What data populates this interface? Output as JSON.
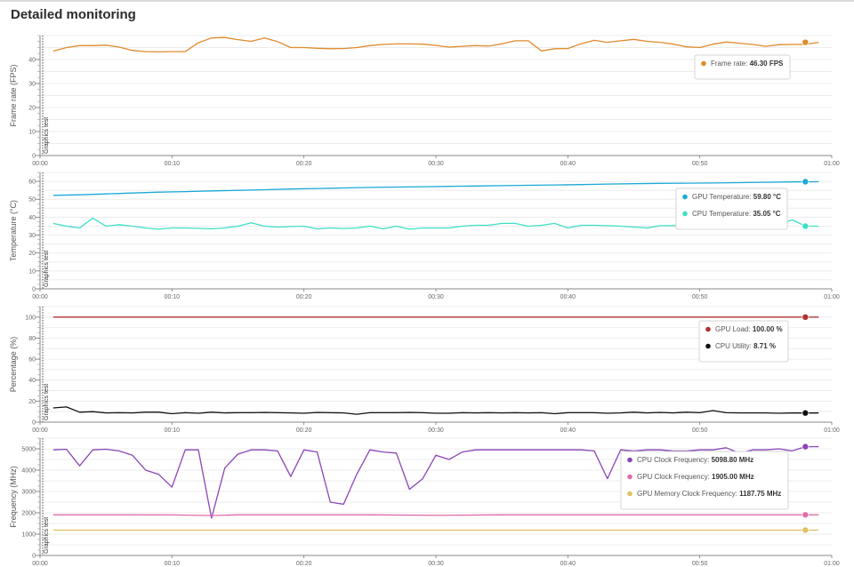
{
  "page": {
    "title": "Detailed monitoring"
  },
  "chart_data": [
    {
      "type": "line",
      "ylabel": "Frame rate (FPS)",
      "ylim": [
        0,
        50
      ],
      "yticks": [
        0,
        10,
        20,
        30,
        40
      ],
      "xlim": [
        0,
        60
      ],
      "xticks": [
        "00:00",
        "00:10",
        "00:20",
        "00:30",
        "00:40",
        "00:50",
        "01:00"
      ],
      "marker_label": "Graphics test",
      "series": [
        {
          "name": "Frame rate",
          "color": "#e08a2c",
          "x": [
            1,
            2,
            3,
            4,
            5,
            6,
            7,
            8,
            9,
            10,
            11,
            12,
            13,
            14,
            15,
            16,
            17,
            18,
            19,
            20,
            21,
            22,
            23,
            24,
            25,
            26,
            27,
            28,
            29,
            30,
            31,
            32,
            33,
            34,
            35,
            36,
            37,
            38,
            39,
            40,
            41,
            42,
            43,
            44,
            45,
            46,
            47,
            48,
            49,
            50,
            51,
            52,
            53,
            54,
            55,
            56,
            57,
            58,
            59
          ],
          "values": [
            43.5,
            45,
            45.8,
            45.8,
            46,
            45.2,
            43.8,
            43.3,
            43.2,
            43.3,
            43.3,
            47,
            49,
            49.2,
            48.3,
            47.6,
            49,
            47.5,
            45,
            45,
            44.7,
            44.5,
            44.6,
            45,
            45.8,
            46.3,
            46.5,
            46.5,
            46.4,
            45.9,
            45.2,
            45.5,
            45.8,
            45.6,
            46.5,
            47.8,
            47.8,
            43.6,
            44.5,
            44.6,
            46.6,
            48,
            47.2,
            47.8,
            48.4,
            47.6,
            47.2,
            46.4,
            45.3,
            45,
            46.4,
            47.3,
            46.8,
            46.3,
            45.5,
            46.2,
            46.3,
            46.3,
            47.2
          ],
          "tooltip": "Frame rate:",
          "tooltip_value": "46.30 FPS"
        }
      ],
      "tooltip_pos": "right"
    },
    {
      "type": "line",
      "ylabel": "Temperature (°C)",
      "ylim": [
        0,
        65
      ],
      "yticks": [
        0,
        10,
        20,
        30,
        40,
        50,
        60
      ],
      "xlim": [
        0,
        60
      ],
      "xticks": [
        "00:00",
        "00:10",
        "00:20",
        "00:30",
        "00:40",
        "00:50",
        "01:00"
      ],
      "marker_label": "Graphics test",
      "series": [
        {
          "name": "GPU Temperature",
          "color": "#1aa9d6",
          "x": [
            1,
            3,
            5,
            7,
            9,
            11,
            13,
            15,
            17,
            19,
            21,
            23,
            25,
            27,
            29,
            31,
            33,
            35,
            37,
            39,
            41,
            43,
            45,
            47,
            49,
            51,
            53,
            55,
            57,
            59
          ],
          "values": [
            52.2,
            52.5,
            53,
            53.5,
            54,
            54.3,
            54.7,
            55,
            55.3,
            55.7,
            56,
            56.3,
            56.6,
            56.8,
            57,
            57.2,
            57.4,
            57.6,
            57.8,
            58,
            58.2,
            58.5,
            58.7,
            58.9,
            59,
            59.1,
            59.3,
            59.5,
            59.7,
            59.8
          ],
          "tooltip": "GPU Temperature:",
          "tooltip_value": "59.80 °C"
        },
        {
          "name": "CPU Temperature",
          "color": "#3de0c4",
          "x": [
            1,
            2,
            3,
            4,
            5,
            6,
            7,
            8,
            9,
            10,
            11,
            12,
            13,
            14,
            15,
            16,
            17,
            18,
            19,
            20,
            21,
            22,
            23,
            24,
            25,
            26,
            27,
            28,
            29,
            30,
            31,
            32,
            33,
            34,
            35,
            36,
            37,
            38,
            39,
            40,
            41,
            42,
            43,
            44,
            45,
            46,
            47,
            48,
            49,
            50,
            51,
            52,
            53,
            54,
            55,
            56,
            57,
            58,
            59
          ],
          "values": [
            36.5,
            35,
            34,
            39.5,
            35,
            35.8,
            35,
            34,
            33.3,
            34,
            34,
            33.8,
            33.5,
            34,
            35,
            36.8,
            35,
            34.5,
            34.8,
            35,
            33.5,
            34,
            33.7,
            34,
            35,
            33.5,
            35,
            33.3,
            34,
            34,
            34,
            35,
            35.5,
            35.5,
            36.5,
            36.5,
            35,
            35.5,
            36.5,
            34,
            35.5,
            35.5,
            35.3,
            35,
            34.5,
            34,
            35.3,
            35.3,
            35.5,
            36,
            35,
            34.8,
            35,
            34.5,
            35,
            36,
            38.5,
            35.05,
            35
          ],
          "tooltip": "CPU Temperature:",
          "tooltip_value": "35.05 °C"
        }
      ],
      "tooltip_pos": "right"
    },
    {
      "type": "line",
      "ylabel": "Percentage (%)",
      "ylim": [
        0,
        110
      ],
      "yticks": [
        0,
        20,
        40,
        60,
        80,
        100
      ],
      "xlim": [
        0,
        60
      ],
      "xticks": [
        "00:00",
        "00:10",
        "00:20",
        "00:30",
        "00:40",
        "00:50",
        "01:00"
      ],
      "marker_label": "Graphics test",
      "series": [
        {
          "name": "GPU Load",
          "color": "#b03030",
          "x": [
            1,
            59
          ],
          "values": [
            100,
            100
          ],
          "tooltip": "GPU Load:",
          "tooltip_value": "100.00 %"
        },
        {
          "name": "CPU Utility",
          "color": "#111111",
          "x": [
            1,
            2,
            3,
            4,
            5,
            6,
            7,
            8,
            9,
            10,
            11,
            12,
            13,
            14,
            15,
            16,
            17,
            18,
            19,
            20,
            21,
            22,
            23,
            24,
            25,
            26,
            27,
            28,
            29,
            30,
            31,
            32,
            33,
            34,
            35,
            36,
            37,
            38,
            39,
            40,
            41,
            42,
            43,
            44,
            45,
            46,
            47,
            48,
            49,
            50,
            51,
            52,
            53,
            54,
            55,
            56,
            57,
            58,
            59
          ],
          "values": [
            13.5,
            14.5,
            9.5,
            10,
            8.8,
            9,
            8.8,
            9.5,
            9.5,
            8,
            9,
            8.5,
            9.5,
            8.8,
            9,
            9,
            9.2,
            9,
            8.8,
            8.5,
            9.2,
            9,
            8.8,
            7.5,
            9,
            9,
            9,
            9.2,
            9,
            8.5,
            8.5,
            9,
            8.8,
            9,
            8.8,
            9,
            8.8,
            9,
            8,
            9,
            9,
            9,
            8.5,
            8.8,
            9.5,
            8.8,
            9.2,
            8.8,
            9.5,
            9,
            11,
            9,
            8.8,
            8.8,
            8.8,
            8.5,
            8.7,
            8.71,
            8.7
          ],
          "tooltip": "CPU Utility:",
          "tooltip_value": "8.71 %"
        }
      ],
      "tooltip_pos": "right"
    },
    {
      "type": "line",
      "ylabel": "Frequency (MHz)",
      "ylim": [
        0,
        5500
      ],
      "yticks": [
        0,
        1000,
        2000,
        3000,
        4000,
        5000
      ],
      "xlim": [
        0,
        60
      ],
      "xticks": [
        "00:00",
        "00:10",
        "00:20",
        "00:30",
        "00:40",
        "00:50",
        "01:00"
      ],
      "marker_label": "Graphics test",
      "series": [
        {
          "name": "CPU Clock Frequency",
          "color": "#8a45b8",
          "x": [
            1,
            2,
            3,
            4,
            5,
            6,
            7,
            8,
            9,
            10,
            11,
            12,
            13,
            14,
            15,
            16,
            17,
            18,
            19,
            20,
            21,
            22,
            23,
            24,
            25,
            26,
            27,
            28,
            29,
            30,
            31,
            32,
            33,
            34,
            35,
            36,
            37,
            38,
            39,
            40,
            41,
            42,
            43,
            44,
            45,
            46,
            47,
            48,
            49,
            50,
            51,
            52,
            53,
            54,
            55,
            56,
            57,
            58,
            59
          ],
          "values": [
            4950,
            4980,
            4200,
            4950,
            4980,
            4900,
            4700,
            4000,
            3800,
            3200,
            4950,
            4950,
            1750,
            4100,
            4750,
            4950,
            4950,
            4900,
            3700,
            4950,
            4850,
            2500,
            2400,
            3800,
            4950,
            4850,
            4800,
            3100,
            3600,
            4700,
            4500,
            4850,
            4950,
            4950,
            4950,
            4950,
            4950,
            4950,
            4950,
            4950,
            4950,
            4900,
            3600,
            4950,
            4900,
            4950,
            4950,
            4900,
            4900,
            4950,
            4950,
            5050,
            4800,
            4950,
            4950,
            5000,
            4900,
            5098.8,
            5098.8
          ],
          "tooltip": "CPU Clock Frequency:",
          "tooltip_value": "5098.80 MHz"
        },
        {
          "name": "GPU Clock Frequency",
          "color": "#e06aa8",
          "x": [
            1,
            5,
            10,
            13,
            15,
            20,
            25,
            30,
            35,
            40,
            45,
            50,
            55,
            59
          ],
          "values": [
            1905,
            1905,
            1900,
            1870,
            1905,
            1905,
            1905,
            1880,
            1905,
            1905,
            1905,
            1905,
            1905,
            1905
          ],
          "tooltip": "GPU Clock Frequency:",
          "tooltip_value": "1905.00 MHz"
        },
        {
          "name": "GPU Memory Clock Frequency",
          "color": "#e0c060",
          "x": [
            1,
            59
          ],
          "values": [
            1187.75,
            1187.75
          ],
          "tooltip": "GPU Memory Clock Frequency:",
          "tooltip_value": "1187.75 MHz"
        }
      ],
      "tooltip_pos": "right"
    }
  ]
}
